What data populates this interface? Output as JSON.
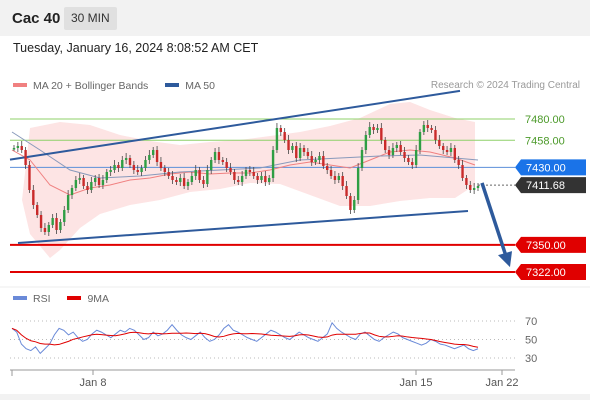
{
  "header": {
    "symbol": "Cac 40",
    "interval": "30 MIN",
    "datetime": "Tuesday, January 16, 2024 8:08:52 AM CET"
  },
  "legend": {
    "items": [
      {
        "label": "MA 20 + Bollinger Bands",
        "color": "#f08080"
      },
      {
        "label": "MA 50",
        "color": "#2e5a9c"
      }
    ],
    "credit": "Research © 2024 Trading Central"
  },
  "rsi_legend": {
    "items": [
      {
        "label": "RSI",
        "color": "#6a8ad8"
      },
      {
        "label": "9MA",
        "color": "#e00000"
      }
    ]
  },
  "chart_data": [
    {
      "type": "candlestick",
      "symbol": "Cac 40",
      "interval": "30 MIN",
      "price_levels": [
        {
          "value": 7480.0,
          "label": "7480.00",
          "style": "resistance",
          "color": "#8fd06a"
        },
        {
          "value": 7458.0,
          "label": "7458.00",
          "style": "resistance",
          "color": "#8fd06a"
        },
        {
          "value": 7430.0,
          "label": "7430.00",
          "style": "pivot",
          "color": "#1a73e8"
        },
        {
          "value": 7411.68,
          "label": "7411.68",
          "style": "last",
          "color": "#333333"
        },
        {
          "value": 7350.0,
          "label": "7350.00",
          "style": "support",
          "color": "#e00000"
        },
        {
          "value": 7322.0,
          "label": "7322.00",
          "style": "support",
          "color": "#e00000"
        }
      ],
      "x_tick_labels": [
        "Jan 8",
        "Jan 15",
        "Jan 22"
      ],
      "channel": {
        "upper": [
          7438,
          7509
        ],
        "lower": [
          7352,
          7385
        ]
      },
      "forecast_arrow": {
        "from": 7414,
        "to": 7327
      }
    },
    {
      "type": "line",
      "name": "RSI",
      "ylim": [
        20,
        80
      ],
      "y_ticks": [
        30,
        50,
        70
      ],
      "series": [
        {
          "name": "RSI",
          "color": "#6a8ad8"
        },
        {
          "name": "9MA",
          "color": "#e00000"
        }
      ]
    }
  ]
}
